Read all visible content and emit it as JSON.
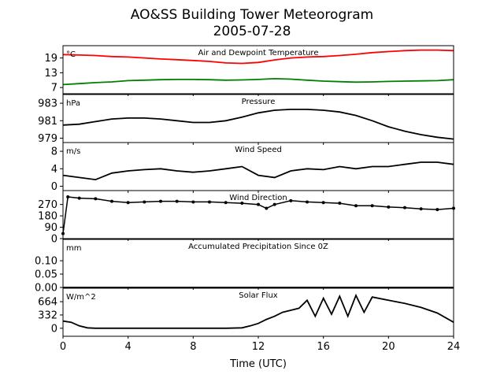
{
  "figure": {
    "title": "AO&SS Building Tower Meteorogram",
    "subtitle": "2005-07-28",
    "xlabel": "Time (UTC)"
  },
  "chart_data": [
    {
      "type": "line",
      "title": "Air and Dewpoint Temperature",
      "unit": "°C",
      "xlim": [
        0,
        24
      ],
      "ylim": [
        4.5,
        24
      ],
      "yticks": [
        7,
        13,
        19
      ],
      "series": [
        {
          "color": "#ff0000",
          "x": [
            0,
            1,
            2,
            3,
            4,
            5,
            6,
            7,
            8,
            9,
            10,
            11,
            12,
            13,
            14,
            15,
            16,
            17,
            18,
            19,
            20,
            21,
            22,
            23,
            24
          ],
          "y": [
            20.4,
            20.2,
            20.0,
            19.6,
            19.4,
            19.0,
            18.6,
            18.3,
            18.0,
            17.6,
            17.0,
            16.8,
            17.2,
            18.2,
            19.0,
            19.4,
            19.6,
            20.0,
            20.5,
            21.2,
            21.6,
            22.0,
            22.2,
            22.2,
            22.0
          ]
        },
        {
          "color": "#008000",
          "x": [
            0,
            1,
            2,
            3,
            4,
            5,
            6,
            7,
            8,
            9,
            10,
            11,
            12,
            13,
            14,
            15,
            16,
            17,
            18,
            19,
            20,
            21,
            22,
            23,
            24
          ],
          "y": [
            8.2,
            8.6,
            9.0,
            9.3,
            9.8,
            10.0,
            10.2,
            10.3,
            10.3,
            10.2,
            10.0,
            10.1,
            10.3,
            10.6,
            10.4,
            10.0,
            9.6,
            9.4,
            9.2,
            9.3,
            9.5,
            9.6,
            9.7,
            9.8,
            10.2
          ]
        }
      ]
    },
    {
      "type": "line",
      "title": "Pressure",
      "unit": "hPa",
      "xlim": [
        0,
        24
      ],
      "ylim": [
        978.5,
        984.0
      ],
      "yticks": [
        979,
        981,
        983
      ],
      "series": [
        {
          "color": "#000000",
          "x": [
            0,
            1,
            2,
            3,
            4,
            5,
            6,
            7,
            8,
            9,
            10,
            11,
            12,
            13,
            14,
            15,
            16,
            17,
            18,
            19,
            20,
            21,
            22,
            23,
            24
          ],
          "y": [
            980.5,
            980.6,
            980.9,
            981.2,
            981.3,
            981.3,
            981.2,
            981.0,
            980.8,
            980.8,
            981.0,
            981.4,
            981.9,
            982.2,
            982.3,
            982.3,
            982.2,
            982.0,
            981.6,
            981.0,
            980.3,
            979.8,
            979.4,
            979.1,
            978.9
          ]
        }
      ]
    },
    {
      "type": "line",
      "title": "Wind Speed",
      "unit": "m/s",
      "xlim": [
        0,
        24
      ],
      "ylim": [
        -1,
        10
      ],
      "yticks": [
        0,
        4,
        8
      ],
      "series": [
        {
          "color": "#000000",
          "x": [
            0,
            1,
            2,
            3,
            4,
            5,
            6,
            7,
            8,
            9,
            10,
            11,
            12,
            13,
            14,
            15,
            16,
            17,
            18,
            19,
            20,
            21,
            22,
            23,
            24
          ],
          "y": [
            2.5,
            2.0,
            1.5,
            3.0,
            3.5,
            3.8,
            4.0,
            3.5,
            3.2,
            3.5,
            4.0,
            4.5,
            2.5,
            2.0,
            3.5,
            4.0,
            3.8,
            4.5,
            4.0,
            4.5,
            4.5,
            5.0,
            5.5,
            5.5,
            5.0
          ]
        }
      ]
    },
    {
      "type": "scatter",
      "title": "Wind Direction",
      "unit": "",
      "xlim": [
        0,
        24
      ],
      "ylim": [
        0,
        380
      ],
      "yticks": [
        0,
        90,
        180,
        270
      ],
      "series": [
        {
          "color": "#000000",
          "x": [
            0,
            0.3,
            1,
            2,
            3,
            4,
            5,
            6,
            7,
            8,
            9,
            10,
            11,
            12,
            12.5,
            13,
            14,
            15,
            16,
            17,
            18,
            19,
            20,
            21,
            22,
            23,
            24
          ],
          "y": [
            40,
            330,
            320,
            315,
            295,
            285,
            290,
            295,
            295,
            290,
            290,
            285,
            280,
            270,
            240,
            270,
            300,
            290,
            285,
            280,
            260,
            260,
            250,
            245,
            235,
            230,
            240
          ]
        }
      ]
    },
    {
      "type": "line",
      "title": "Accumulated Precipitation Since 0Z",
      "unit": "mm",
      "xlim": [
        0,
        24
      ],
      "ylim": [
        0,
        0.18
      ],
      "yticks": [
        0.0,
        0.05,
        0.1
      ],
      "series": [
        {
          "color": "#000000",
          "x": [
            0,
            24
          ],
          "y": [
            0,
            0
          ]
        }
      ]
    },
    {
      "type": "line",
      "title": "Solar Flux",
      "unit": "W/m^2",
      "xlim": [
        0,
        24
      ],
      "ylim": [
        -200,
        1000
      ],
      "yticks": [
        0,
        332,
        664
      ],
      "series": [
        {
          "color": "#000000",
          "x": [
            0,
            0.5,
            1,
            1.5,
            2,
            4,
            6,
            8,
            10,
            11,
            11.5,
            12,
            12.5,
            13,
            13.5,
            14,
            14.5,
            15,
            15.5,
            16,
            16.5,
            17,
            17.5,
            18,
            18.5,
            19,
            20,
            21,
            22,
            23,
            24
          ],
          "y": [
            180,
            150,
            60,
            10,
            0,
            0,
            0,
            0,
            0,
            10,
            60,
            120,
            220,
            300,
            400,
            450,
            500,
            700,
            300,
            750,
            350,
            800,
            300,
            820,
            400,
            780,
            700,
            620,
            520,
            380,
            150
          ]
        }
      ]
    }
  ]
}
